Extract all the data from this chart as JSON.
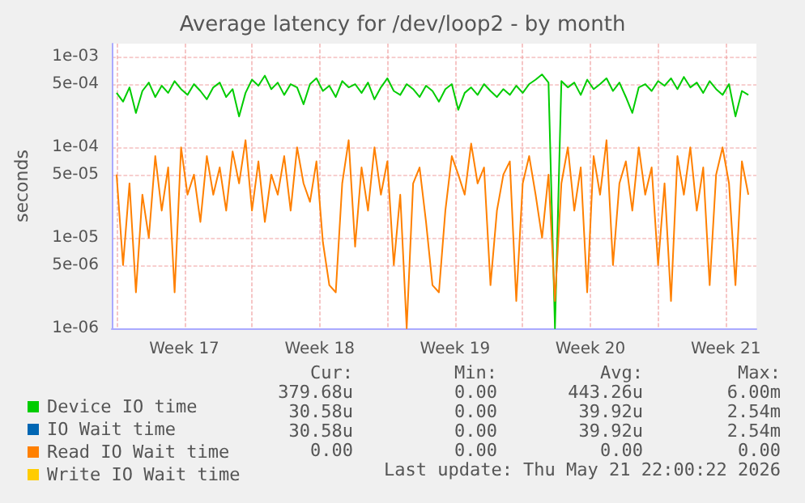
{
  "chart_data": {
    "type": "line",
    "title": "Average latency for /dev/loop2 - by month",
    "ylabel": "seconds",
    "x": [
      "2026-04-20T00:00",
      "2026-04-20T08:00",
      "2026-04-20T16:00",
      "2026-04-21T00:00",
      "2026-04-21T08:00",
      "2026-04-21T16:00",
      "2026-04-22T00:00",
      "2026-04-22T08:00",
      "2026-04-22T16:00",
      "2026-04-23T00:00",
      "2026-04-23T08:00",
      "2026-04-23T16:00",
      "2026-04-24T00:00",
      "2026-04-24T08:00",
      "2026-04-24T16:00",
      "2026-04-25T00:00",
      "2026-04-25T08:00",
      "2026-04-25T16:00",
      "2026-04-26T00:00",
      "2026-04-26T08:00",
      "2026-04-26T16:00",
      "2026-04-27T00:00",
      "2026-04-27T08:00",
      "2026-04-27T16:00",
      "2026-04-28T00:00",
      "2026-04-28T08:00",
      "2026-04-28T16:00",
      "2026-04-29T00:00",
      "2026-04-29T08:00",
      "2026-04-29T16:00",
      "2026-04-30T00:00",
      "2026-04-30T08:00",
      "2026-04-30T16:00",
      "2026-05-01T00:00",
      "2026-05-01T08:00",
      "2026-05-01T16:00",
      "2026-05-02T00:00",
      "2026-05-02T08:00",
      "2026-05-02T16:00",
      "2026-05-03T00:00",
      "2026-05-03T08:00",
      "2026-05-03T16:00",
      "2026-05-04T00:00",
      "2026-05-04T08:00",
      "2026-05-04T16:00",
      "2026-05-05T00:00",
      "2026-05-05T08:00",
      "2026-05-05T16:00",
      "2026-05-06T00:00",
      "2026-05-06T08:00",
      "2026-05-06T16:00",
      "2026-05-07T00:00",
      "2026-05-07T08:00",
      "2026-05-07T16:00",
      "2026-05-08T00:00",
      "2026-05-08T08:00",
      "2026-05-08T16:00",
      "2026-05-09T00:00",
      "2026-05-09T08:00",
      "2026-05-09T16:00",
      "2026-05-10T00:00",
      "2026-05-10T08:00",
      "2026-05-10T16:00",
      "2026-05-11T00:00",
      "2026-05-11T08:00",
      "2026-05-11T16:00",
      "2026-05-12T00:00",
      "2026-05-12T08:00",
      "2026-05-12T16:00",
      "2026-05-13T00:00",
      "2026-05-13T08:00",
      "2026-05-13T16:00",
      "2026-05-14T00:00",
      "2026-05-14T08:00",
      "2026-05-14T16:00",
      "2026-05-15T00:00",
      "2026-05-15T08:00",
      "2026-05-15T16:00",
      "2026-05-16T00:00",
      "2026-05-16T08:00",
      "2026-05-16T16:00",
      "2026-05-17T00:00",
      "2026-05-17T08:00",
      "2026-05-17T16:00",
      "2026-05-18T00:00",
      "2026-05-18T08:00",
      "2026-05-18T16:00",
      "2026-05-19T00:00",
      "2026-05-19T08:00",
      "2026-05-19T16:00",
      "2026-05-20T00:00",
      "2026-05-20T08:00",
      "2026-05-20T16:00",
      "2026-05-21T00:00",
      "2026-05-21T08:00",
      "2026-05-21T16:00",
      "2026-05-22T00:00",
      "2026-05-22T08:00",
      "2026-05-22T16:00"
    ],
    "series": [
      {
        "name": "Device IO time",
        "color": "#00cc00",
        "values": [
          0.0004,
          0.00032,
          0.00046,
          0.00024,
          0.00042,
          0.00052,
          0.00036,
          0.00048,
          0.0004,
          0.00054,
          0.00044,
          0.00038,
          0.0005,
          0.00042,
          0.00034,
          0.00046,
          0.00052,
          0.00036,
          0.00044,
          0.00022,
          0.0004,
          0.00056,
          0.00048,
          0.00062,
          0.00044,
          0.00052,
          0.00038,
          0.0005,
          0.00046,
          0.0003,
          0.0005,
          0.00058,
          0.00042,
          0.00048,
          0.00036,
          0.00054,
          0.00046,
          0.0005,
          0.0004,
          0.00052,
          0.00034,
          0.00046,
          0.00058,
          0.00042,
          0.00038,
          0.0005,
          0.00044,
          0.00036,
          0.00048,
          0.00042,
          0.00032,
          0.00044,
          0.0005,
          0.00026,
          0.0004,
          0.00046,
          0.00038,
          0.0005,
          0.00042,
          0.00036,
          0.00044,
          0.00038,
          0.00048,
          0.0004,
          0.0005,
          0.00056,
          0.00064,
          0.00052,
          1e-06,
          0.00054,
          0.00046,
          0.00052,
          0.00038,
          0.00056,
          0.00044,
          0.0005,
          0.00058,
          0.00042,
          0.00052,
          0.00036,
          0.00024,
          0.00046,
          0.0005,
          0.00042,
          0.00054,
          0.00048,
          0.00058,
          0.00044,
          0.0006,
          0.00046,
          0.00052,
          0.0004,
          0.00054,
          0.00044,
          0.00038,
          0.0005,
          0.00022,
          0.00042,
          0.00038
        ]
      },
      {
        "name": "IO Wait time",
        "color": "#0066b3",
        "values": [
          null,
          null,
          null,
          null,
          null,
          null,
          null,
          null,
          null,
          null,
          null,
          null,
          null,
          null,
          null,
          null,
          null,
          null,
          null,
          null,
          null,
          null,
          null,
          null,
          null,
          null,
          null,
          null,
          null,
          null,
          null,
          null,
          null,
          null,
          null,
          null,
          null,
          null,
          null,
          null,
          null,
          null,
          null,
          null,
          null,
          null,
          null,
          null,
          null,
          null,
          null,
          null,
          null,
          null,
          null,
          null,
          null,
          null,
          null,
          null,
          null,
          null,
          null,
          null,
          null,
          null,
          null,
          null,
          null,
          null,
          null,
          null,
          null,
          null,
          null,
          null,
          null,
          null,
          null,
          null,
          null,
          null,
          null,
          null,
          null,
          null,
          null,
          null,
          null,
          null,
          null,
          null,
          null,
          null,
          null,
          null,
          null,
          null,
          null
        ]
      },
      {
        "name": "Read IO Wait time",
        "color": "#ff8000",
        "values": [
          5e-05,
          5e-06,
          4e-05,
          2.5e-06,
          3e-05,
          1e-05,
          8e-05,
          2e-05,
          6e-05,
          2.5e-06,
          0.0001,
          3e-05,
          5e-05,
          1.5e-05,
          8e-05,
          3e-05,
          6e-05,
          2e-05,
          9e-05,
          4e-05,
          0.00012,
          2e-05,
          7e-05,
          1.5e-05,
          5e-05,
          3e-05,
          8e-05,
          2e-05,
          0.0001,
          4e-05,
          2.5e-05,
          7e-05,
          9e-06,
          3e-06,
          2.5e-06,
          4e-05,
          0.00012,
          8e-06,
          6e-05,
          2e-05,
          0.0001,
          3e-05,
          7e-05,
          5e-06,
          3e-05,
          1e-06,
          4e-05,
          6e-05,
          1.5e-05,
          3e-06,
          2.5e-06,
          2e-05,
          8e-05,
          5e-05,
          3e-05,
          0.00011,
          4e-05,
          6e-05,
          3e-06,
          2e-05,
          5e-05,
          7e-05,
          2e-06,
          4e-05,
          8e-05,
          3e-05,
          1e-05,
          5e-05,
          2e-06,
          4e-05,
          0.0001,
          2e-05,
          6e-05,
          2.5e-06,
          8e-05,
          3e-05,
          0.00012,
          5e-06,
          4e-05,
          7e-05,
          2e-05,
          0.0001,
          3e-05,
          6e-05,
          5e-06,
          4e-05,
          2e-06,
          8e-05,
          3e-05,
          0.0001,
          2e-05,
          6e-05,
          3e-06,
          5e-05,
          0.0001,
          4e-05,
          3e-06,
          7e-05,
          3e-05
        ]
      },
      {
        "name": "Write IO Wait time",
        "color": "#ffcc00",
        "values": [
          null,
          null,
          null,
          null,
          null,
          null,
          null,
          null,
          null,
          null,
          null,
          null,
          null,
          null,
          null,
          null,
          null,
          null,
          null,
          null,
          null,
          null,
          null,
          null,
          null,
          null,
          null,
          null,
          null,
          null,
          null,
          null,
          null,
          null,
          null,
          null,
          null,
          null,
          null,
          null,
          null,
          null,
          null,
          null,
          null,
          null,
          null,
          null,
          null,
          null,
          null,
          null,
          null,
          null,
          null,
          null,
          null,
          null,
          null,
          null,
          null,
          null,
          null,
          null,
          null,
          null,
          null,
          null,
          null,
          null,
          null,
          null,
          null,
          null,
          null,
          null,
          null,
          null,
          null,
          null,
          null,
          null,
          null,
          null,
          null,
          null,
          null,
          null,
          null,
          null,
          null,
          null,
          null,
          null,
          null,
          null,
          null,
          null,
          null
        ]
      }
    ],
    "log": "y",
    "ylim": [
      1e-06,
      0.0014
    ],
    "yticks": [
      {
        "value": 1e-06,
        "label": "1e-06"
      },
      {
        "value": 5e-06,
        "label": "5e-06"
      },
      {
        "value": 1e-05,
        "label": "1e-05"
      },
      {
        "value": 5e-05,
        "label": "5e-05"
      },
      {
        "value": 0.0001,
        "label": "1e-04"
      },
      {
        "value": 0.0005,
        "label": "5e-04"
      },
      {
        "value": 0.001,
        "label": "1e-03"
      }
    ],
    "xlim": [
      "2026-04-19T18:00",
      "2026-05-23T02:00"
    ],
    "xticks": [
      {
        "value": "2026-04-20T00:00",
        "label": null
      },
      {
        "value": "2026-04-23T12:00",
        "label": "Week 17"
      },
      {
        "value": "2026-04-27T00:00",
        "label": null
      },
      {
        "value": "2026-04-30T12:00",
        "label": "Week 18"
      },
      {
        "value": "2026-05-04T00:00",
        "label": null
      },
      {
        "value": "2026-05-07T12:00",
        "label": "Week 19"
      },
      {
        "value": "2026-05-11T00:00",
        "label": null
      },
      {
        "value": "2026-05-14T12:00",
        "label": "Week 20"
      },
      {
        "value": "2026-05-18T00:00",
        "label": null
      },
      {
        "value": "2026-05-21T12:00",
        "label": "Week 21"
      }
    ],
    "grid": true,
    "legend": "bottom left",
    "marker": "none",
    "line_style": "solid",
    "annotations": [
      "Cur:",
      "Min:",
      "Avg:",
      "Max:",
      "379.68u",
      "0.00",
      "443.26u",
      "6.00m",
      "30.58u",
      "0.00",
      "39.92u",
      "2.54m",
      "30.58u",
      "0.00",
      "39.92u",
      "2.54m",
      "0.00",
      "0.00",
      "0.00",
      "0.00",
      "Last update: Thu May 21 22:00:22 2026"
    ]
  }
}
